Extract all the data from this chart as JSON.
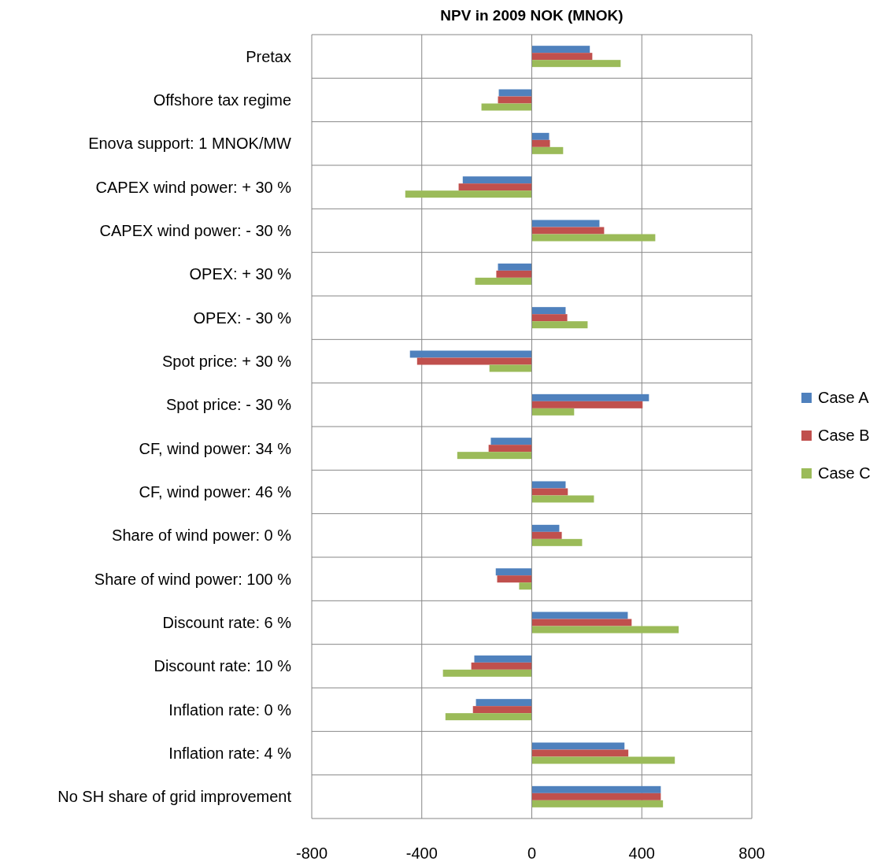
{
  "chart_data": {
    "type": "bar",
    "orientation": "horizontal",
    "title": "NPV in 2009 NOK (MNOK)",
    "categories": [
      "Pretax",
      "Offshore tax regime",
      "Enova support: 1 MNOK/MW",
      "CAPEX wind power: + 30 %",
      "CAPEX wind power: - 30 %",
      "OPEX: + 30 %",
      "OPEX: - 30 %",
      "Spot price: + 30 %",
      "Spot price: - 30 %",
      "CF, wind power: 34 %",
      "CF, wind power: 46 %",
      "Share of wind power: 0 %",
      "Share of wind power: 100 %",
      "Discount rate: 6 %",
      "Discount rate: 10 %",
      "Inflation rate: 0 %",
      "Inflation rate: 4 %",
      "No SH share of grid improvement"
    ],
    "series": [
      {
        "name": "Case A",
        "color": "#4f81bd",
        "values": [
          211,
          -120,
          63,
          -251,
          246,
          -123,
          123,
          -443,
          426,
          -149,
          123,
          100,
          -131,
          349,
          -209,
          -203,
          337,
          469
        ]
      },
      {
        "name": "Case B",
        "color": "#c0504d",
        "values": [
          220,
          -123,
          66,
          -266,
          263,
          -129,
          129,
          -417,
          403,
          -157,
          131,
          109,
          -126,
          363,
          -220,
          -214,
          351,
          469
        ]
      },
      {
        "name": "Case C",
        "color": "#9bbb59",
        "values": [
          323,
          -183,
          114,
          -460,
          449,
          -206,
          203,
          -154,
          154,
          -271,
          226,
          183,
          -46,
          534,
          -323,
          -314,
          520,
          477
        ]
      }
    ],
    "xlim": [
      -800,
      800
    ],
    "xticks": [
      -800,
      -400,
      0,
      400,
      800
    ],
    "grid": true,
    "legend": "right"
  }
}
